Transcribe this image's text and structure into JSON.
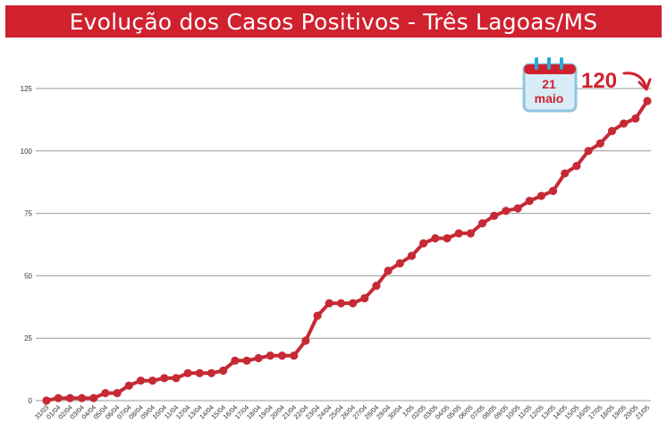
{
  "header": {
    "title": "Evolução dos Casos Positivos - Três Lagoas/MS"
  },
  "colors": {
    "accent": "#d0212f",
    "line": "#c62a35",
    "grid": "#999999",
    "calendar_bg": "#d8ecf6",
    "calendar_border": "#8fc4de",
    "calendar_rings": "#29a9d6"
  },
  "callout": {
    "calendar_day": "21",
    "calendar_month": "maio",
    "value_label": "120",
    "icon": "calendar-icon"
  },
  "chart_data": {
    "type": "line",
    "title": "Evolução dos Casos Positivos - Três Lagoas/MS",
    "xlabel": "",
    "ylabel": "",
    "ylim": [
      0,
      140
    ],
    "yticks": [
      0,
      25,
      50,
      75,
      100,
      125
    ],
    "grid": true,
    "categories": [
      "31/03",
      "01/04",
      "02/04",
      "03/04",
      "04/04",
      "05/04",
      "06/04",
      "07/04",
      "08/04",
      "09/04",
      "10/04",
      "11/04",
      "12/04",
      "13/04",
      "14/04",
      "15/04",
      "16/04",
      "17/04",
      "18/04",
      "19/04",
      "20/04",
      "21/04",
      "22/04",
      "23/04",
      "24/04",
      "25/04",
      "26/04",
      "27/04",
      "28/04",
      "29/04",
      "30/04",
      "1/05",
      "02/05",
      "03/05",
      "04/05",
      "05/05",
      "06/05",
      "07/05",
      "08/05",
      "09/05",
      "10/05",
      "11/05",
      "12/05",
      "13/05",
      "14/05",
      "15/05",
      "16/05",
      "17/05",
      "18/05",
      "19/05",
      "20/05",
      "21/05"
    ],
    "series": [
      {
        "values": [
          0,
          1,
          1,
          1,
          1,
          3,
          3,
          6,
          8,
          8,
          9,
          9,
          11,
          11,
          11,
          12,
          16,
          16,
          17,
          18,
          18,
          18,
          24,
          34,
          39,
          39,
          39,
          41,
          46,
          52,
          55,
          58,
          63,
          65,
          65,
          67,
          67,
          71,
          74,
          76,
          77,
          80,
          82,
          84,
          91,
          94,
          100,
          103,
          108,
          111,
          113,
          120
        ]
      }
    ]
  }
}
